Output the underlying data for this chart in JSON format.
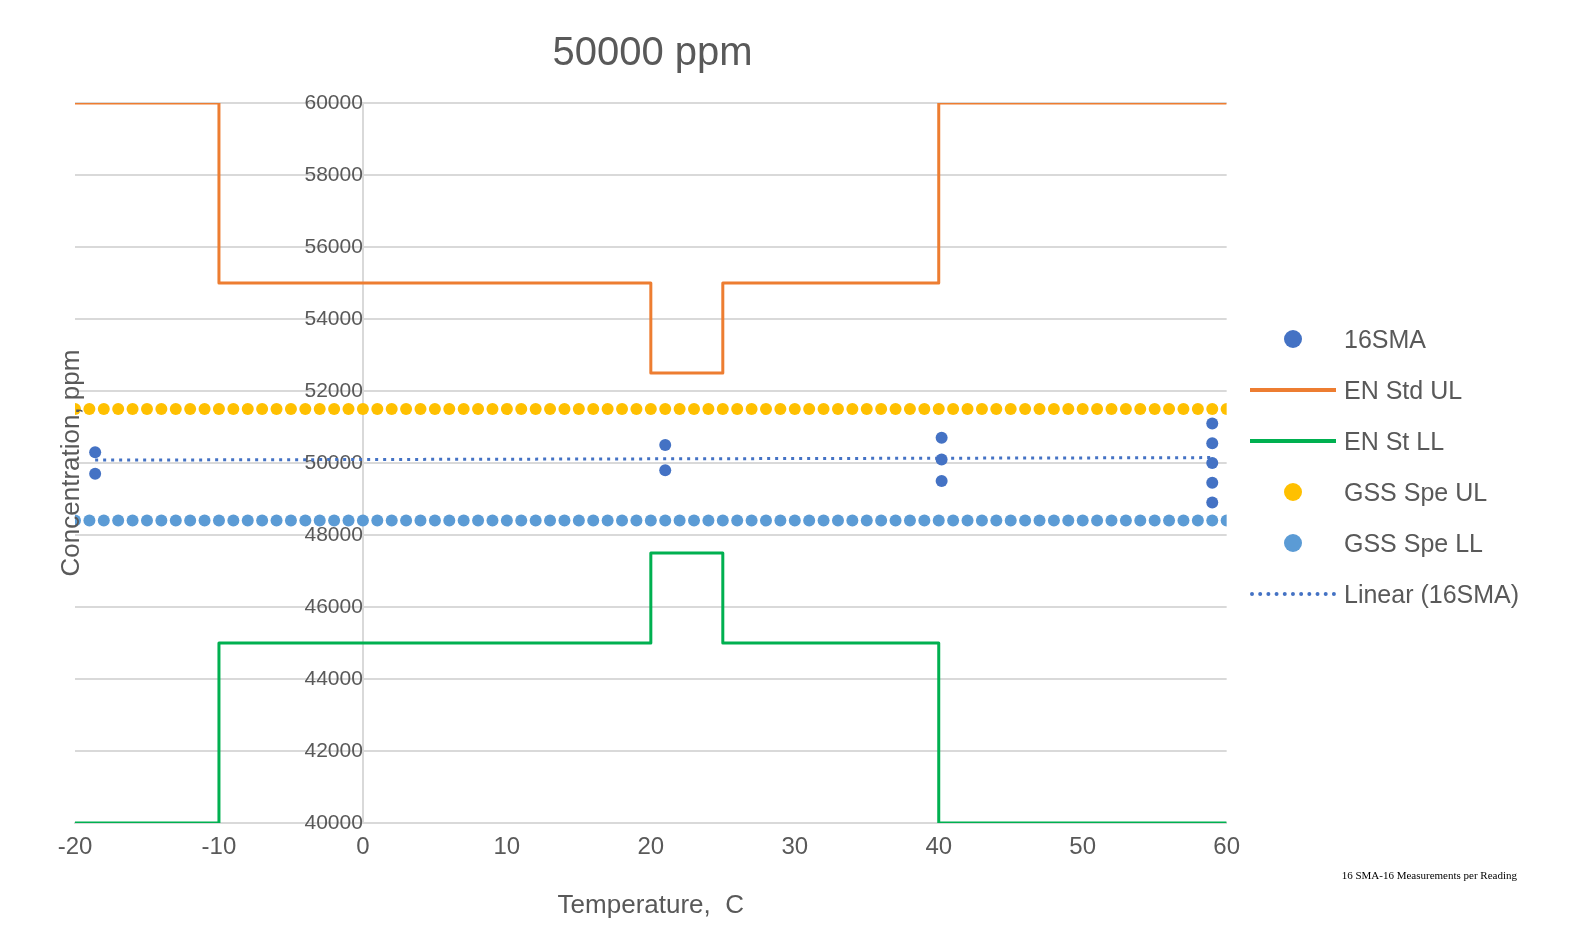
{
  "chart_data": {
    "type": "scatter",
    "title": "50000 ppm",
    "xlabel": "Temperature,  C",
    "ylabel": "Concentration, ppm",
    "xlim": [
      -20,
      60
    ],
    "xticks": [
      -20,
      -10,
      0,
      10,
      20,
      30,
      40,
      50,
      60
    ],
    "ylim": [
      40000,
      60000
    ],
    "yticks": [
      40000,
      42000,
      44000,
      46000,
      48000,
      50000,
      52000,
      54000,
      56000,
      58000,
      60000
    ],
    "grid": "y",
    "legend": "right",
    "marker": "circle",
    "annotations": [
      "16 SMA-16 Measurements per Reading"
    ],
    "series": [
      {
        "name": "16SMA",
        "color": "#4472c4",
        "x": [
          -18.6,
          -18.6,
          21,
          21,
          40.2,
          40.2,
          40.2,
          59,
          59,
          59,
          59,
          59
        ],
        "values": [
          50300,
          49700,
          50500,
          49800,
          50700,
          50100,
          49500,
          51100,
          50550,
          50000,
          49450,
          48900
        ]
      },
      {
        "name": "EN Std UL",
        "type": "line",
        "marker": "none",
        "color": "#ed7d31",
        "x": [
          -20,
          -10,
          -10,
          20,
          20,
          25,
          25,
          40,
          40,
          60
        ],
        "values": [
          60000,
          60000,
          55000,
          55000,
          52500,
          52500,
          55000,
          55000,
          60000,
          60000
        ]
      },
      {
        "name": "EN St LL",
        "type": "line",
        "marker": "none",
        "color": "#00b050",
        "x": [
          -20,
          -10,
          -10,
          20,
          20,
          25,
          25,
          40,
          40,
          60
        ],
        "values": [
          40000,
          40000,
          45000,
          45000,
          47500,
          47500,
          45000,
          45000,
          40000,
          40000
        ]
      },
      {
        "name": "GSS Spe UL",
        "color": "#ffc000",
        "x": [
          -20,
          -19,
          -18,
          -17,
          -16,
          -15,
          -14,
          -13,
          -12,
          -11,
          -10,
          -9,
          -8,
          -7,
          -6,
          -5,
          -4,
          -3,
          -2,
          -1,
          0,
          1,
          2,
          3,
          4,
          5,
          6,
          7,
          8,
          9,
          10,
          11,
          12,
          13,
          14,
          15,
          16,
          17,
          18,
          19,
          20,
          21,
          22,
          23,
          24,
          25,
          26,
          27,
          28,
          29,
          30,
          31,
          32,
          33,
          34,
          35,
          36,
          37,
          38,
          39,
          40,
          41,
          42,
          43,
          44,
          45,
          46,
          47,
          48,
          49,
          50,
          51,
          52,
          53,
          54,
          55,
          56,
          57,
          58,
          59,
          60
        ],
        "values": [
          51500,
          51500,
          51500,
          51500,
          51500,
          51500,
          51500,
          51500,
          51500,
          51500,
          51500,
          51500,
          51500,
          51500,
          51500,
          51500,
          51500,
          51500,
          51500,
          51500,
          51500,
          51500,
          51500,
          51500,
          51500,
          51500,
          51500,
          51500,
          51500,
          51500,
          51500,
          51500,
          51500,
          51500,
          51500,
          51500,
          51500,
          51500,
          51500,
          51500,
          51500,
          51500,
          51500,
          51500,
          51500,
          51500,
          51500,
          51500,
          51500,
          51500,
          51500,
          51500,
          51500,
          51500,
          51500,
          51500,
          51500,
          51500,
          51500,
          51500,
          51500,
          51500,
          51500,
          51500,
          51500,
          51500,
          51500,
          51500,
          51500,
          51500,
          51500,
          51500,
          51500,
          51500,
          51500,
          51500,
          51500,
          51500,
          51500,
          51500,
          51500
        ]
      },
      {
        "name": "GSS Spe  LL",
        "color": "#5b9bd5",
        "x": [
          -20,
          -19,
          -18,
          -17,
          -16,
          -15,
          -14,
          -13,
          -12,
          -11,
          -10,
          -9,
          -8,
          -7,
          -6,
          -5,
          -4,
          -3,
          -2,
          -1,
          0,
          1,
          2,
          3,
          4,
          5,
          6,
          7,
          8,
          9,
          10,
          11,
          12,
          13,
          14,
          15,
          16,
          17,
          18,
          19,
          20,
          21,
          22,
          23,
          24,
          25,
          26,
          27,
          28,
          29,
          30,
          31,
          32,
          33,
          34,
          35,
          36,
          37,
          38,
          39,
          40,
          41,
          42,
          43,
          44,
          45,
          46,
          47,
          48,
          49,
          50,
          51,
          52,
          53,
          54,
          55,
          56,
          57,
          58,
          59,
          60
        ],
        "values": [
          48400,
          48400,
          48400,
          48400,
          48400,
          48400,
          48400,
          48400,
          48400,
          48400,
          48400,
          48400,
          48400,
          48400,
          48400,
          48400,
          48400,
          48400,
          48400,
          48400,
          48400,
          48400,
          48400,
          48400,
          48400,
          48400,
          48400,
          48400,
          48400,
          48400,
          48400,
          48400,
          48400,
          48400,
          48400,
          48400,
          48400,
          48400,
          48400,
          48400,
          48400,
          48400,
          48400,
          48400,
          48400,
          48400,
          48400,
          48400,
          48400,
          48400,
          48400,
          48400,
          48400,
          48400,
          48400,
          48400,
          48400,
          48400,
          48400,
          48400,
          48400,
          48400,
          48400,
          48400,
          48400,
          48400,
          48400,
          48400,
          48400,
          48400,
          48400,
          48400,
          48400,
          48400,
          48400,
          48400,
          48400,
          48400,
          48400,
          48400,
          48400
        ]
      },
      {
        "name": "Linear (16SMA)",
        "type": "line",
        "marker": "none",
        "line_style": "dotted",
        "color": "#4472c4",
        "x": [
          -18.6,
          59
        ],
        "values": [
          50080,
          50150
        ]
      }
    ]
  }
}
